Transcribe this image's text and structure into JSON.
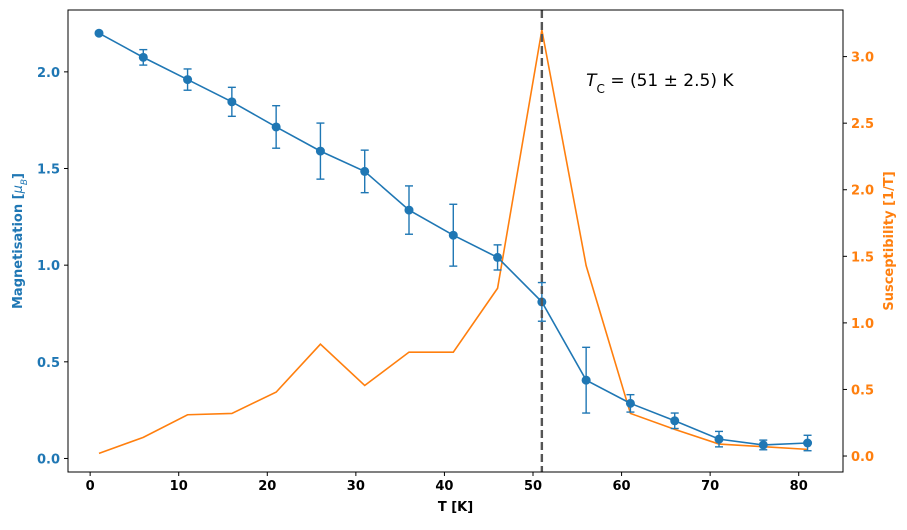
{
  "chart_data": {
    "type": "line",
    "x": [
      1,
      6,
      11,
      16,
      21,
      26,
      31,
      36,
      41,
      46,
      51,
      56,
      61,
      66,
      71,
      76,
      81
    ],
    "xlabel": "T [K]",
    "xticks": [
      "0",
      "10",
      "20",
      "30",
      "40",
      "50",
      "60",
      "70",
      "80"
    ],
    "xlim": [
      -2.5,
      85
    ],
    "ylabel_left": "Magnetisation [μB]",
    "ylabel_left_plain": "Magnetisation [",
    "ylabel_left_unit_symbol": "μ",
    "ylabel_left_unit_sub": "B",
    "ylabel_left_close": "]",
    "yticks_left": [
      "0.0",
      "0.5",
      "1.0",
      "1.5",
      "2.0"
    ],
    "ylim_left": [
      -0.07,
      2.32
    ],
    "ylabel_right": "Susceptibility [1/T]",
    "yticks_right": [
      "0.0",
      "0.5",
      "1.0",
      "1.5",
      "2.0",
      "2.5",
      "3.0"
    ],
    "ylim_right": [
      -0.12,
      3.35
    ],
    "series": [
      {
        "axis": "left",
        "color": "#1f77b4",
        "marker": "circle",
        "values": [
          2.2,
          2.075,
          1.96,
          1.845,
          1.715,
          1.59,
          1.485,
          1.285,
          1.155,
          1.04,
          0.81,
          0.405,
          0.285,
          0.195,
          0.1,
          0.07,
          0.08
        ],
        "errors": [
          0.0,
          0.04,
          0.055,
          0.075,
          0.11,
          0.145,
          0.11,
          0.125,
          0.16,
          0.065,
          0.1,
          0.17,
          0.045,
          0.04,
          0.04,
          0.025,
          0.04
        ]
      },
      {
        "axis": "right",
        "color": "#ff7f0e",
        "marker": "none",
        "values": [
          0.02,
          0.14,
          0.31,
          0.32,
          0.48,
          0.84,
          0.53,
          0.78,
          0.78,
          1.26,
          3.2,
          1.43,
          0.32,
          0.2,
          0.09,
          0.07,
          0.05
        ]
      }
    ],
    "vline": {
      "x": 51,
      "color": "#555555",
      "style": "dashed"
    },
    "annotation": {
      "symbol": "T",
      "subscript": "C",
      "text": " = (51 ± 2.5) K"
    },
    "grid": false,
    "legend": "none"
  }
}
